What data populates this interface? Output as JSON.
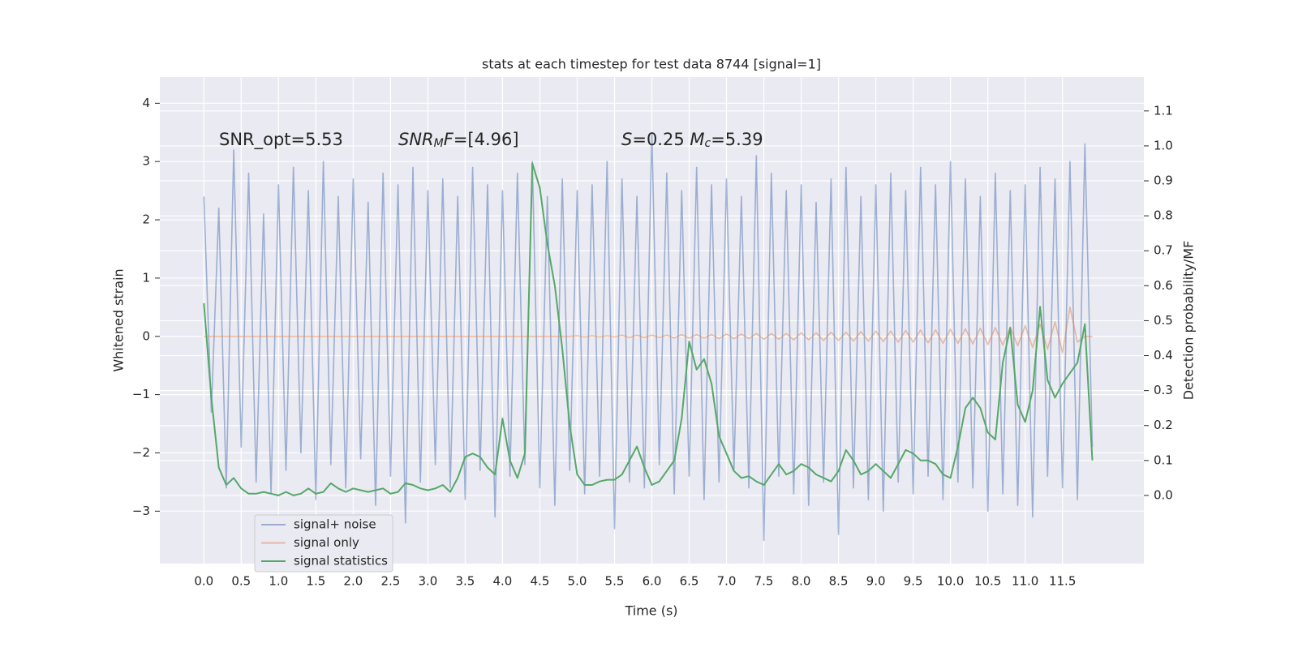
{
  "chart_data": {
    "type": "line",
    "title": "stats at each timestep for test data 8744 [signal=1]",
    "x_label": "Time (s)",
    "y_label": "Whitened strain",
    "y2_label": "Detection probability/MF",
    "annotations": [
      [
        {
          "text": "SNR_opt=5.53"
        }
      ],
      [
        {
          "text": "SNR",
          "italic": true
        },
        {
          "text": "M",
          "sub": true
        },
        {
          "text": "F",
          "italic": true
        },
        {
          "text": "=[4.96]"
        }
      ],
      [
        {
          "text": "S",
          "italic": true
        },
        {
          "text": "=0.25   "
        },
        {
          "text": "M",
          "italic": true
        },
        {
          "text": "c",
          "sub": true
        },
        {
          "text": "=5.39"
        }
      ]
    ],
    "x": [
      0,
      0.1,
      0.2,
      0.3,
      0.4,
      0.5,
      0.6,
      0.7,
      0.8,
      0.9,
      1,
      1.1,
      1.2,
      1.3,
      1.4,
      1.5,
      1.6,
      1.7,
      1.8,
      1.9,
      2,
      2.1,
      2.2,
      2.3,
      2.4,
      2.5,
      2.6,
      2.7,
      2.8,
      2.9,
      3,
      3.1,
      3.2,
      3.3,
      3.4,
      3.5,
      3.6,
      3.7,
      3.8,
      3.9,
      4,
      4.1,
      4.2,
      4.3,
      4.4,
      4.5,
      4.6,
      4.7,
      4.8,
      4.9,
      5,
      5.1,
      5.2,
      5.3,
      5.4,
      5.5,
      5.6,
      5.7,
      5.8,
      5.9,
      6,
      6.1,
      6.2,
      6.3,
      6.4,
      6.5,
      6.6,
      6.7,
      6.8,
      6.9,
      7,
      7.1,
      7.2,
      7.3,
      7.4,
      7.5,
      7.6,
      7.7,
      7.8,
      7.9,
      8,
      8.1,
      8.2,
      8.3,
      8.4,
      8.5,
      8.6,
      8.7,
      8.8,
      8.9,
      9,
      9.1,
      9.2,
      9.3,
      9.4,
      9.5,
      9.6,
      9.7,
      9.8,
      9.9,
      10,
      10.1,
      10.2,
      10.3,
      10.4,
      10.5,
      10.6,
      10.7,
      10.8,
      10.9,
      11,
      11.1,
      11.2,
      11.3,
      11.4,
      11.5,
      11.6,
      11.7,
      11.8,
      11.9
    ],
    "series": [
      {
        "name": "signal+ noise",
        "color": "#4c72b0",
        "opacity": 0.5,
        "values": [
          2.4,
          -1.3,
          2.2,
          -2.6,
          3.2,
          -1.9,
          2.8,
          -2.5,
          2.1,
          -2.7,
          2.6,
          -2.3,
          2.9,
          -2.0,
          2.5,
          -2.8,
          3.0,
          -2.2,
          2.4,
          -2.6,
          2.7,
          -2.1,
          2.3,
          -2.9,
          2.8,
          -2.4,
          2.6,
          -3.2,
          2.9,
          -2.5,
          2.5,
          -2.2,
          2.7,
          -2.6,
          2.4,
          -2.8,
          2.9,
          -2.3,
          2.6,
          -3.1,
          2.5,
          -2.4,
          2.8,
          -2.2,
          3.0,
          -2.6,
          2.4,
          -2.9,
          2.7,
          -2.3,
          2.5,
          -2.7,
          2.6,
          -2.4,
          3.0,
          -3.3,
          2.7,
          -2.5,
          2.4,
          -2.6,
          3.5,
          -2.2,
          2.8,
          -2.7,
          2.5,
          -2.4,
          2.9,
          -2.8,
          2.6,
          -2.5,
          2.7,
          -2.3,
          2.4,
          -2.6,
          3.1,
          -3.5,
          2.8,
          -2.4,
          2.5,
          -2.7,
          2.6,
          -2.9,
          2.3,
          -2.5,
          2.7,
          -3.4,
          2.9,
          -2.6,
          2.4,
          -2.8,
          2.6,
          -3.0,
          2.8,
          -2.5,
          2.5,
          -2.7,
          2.9,
          -2.4,
          2.6,
          -2.8,
          3.0,
          -2.5,
          2.7,
          -2.6,
          2.4,
          -3.0,
          2.8,
          -2.7,
          2.5,
          -2.9,
          2.6,
          -3.1,
          2.9,
          -2.4,
          2.7,
          -2.6,
          3.0,
          -2.8,
          3.3,
          -1.9
        ]
      },
      {
        "name": "signal only",
        "color": "#dd8452",
        "opacity": 0.5,
        "values": [
          0,
          0,
          0,
          0,
          0,
          0,
          0,
          0,
          0,
          0,
          0,
          0,
          0,
          0,
          0,
          0,
          0,
          0,
          0,
          0,
          0,
          0,
          0,
          0,
          0,
          0,
          0,
          0,
          0,
          0,
          0,
          0,
          0,
          0,
          0,
          0,
          0,
          0,
          0,
          0,
          0,
          0,
          0,
          0,
          0,
          0,
          0,
          0,
          0,
          0,
          0.01,
          -0.01,
          0.01,
          -0.01,
          0.01,
          -0.01,
          0.02,
          -0.02,
          0.02,
          -0.02,
          0.02,
          -0.02,
          0.02,
          -0.03,
          0.03,
          -0.03,
          0.03,
          -0.03,
          0.03,
          -0.04,
          0.04,
          -0.04,
          0.04,
          -0.04,
          0.05,
          -0.05,
          0.05,
          -0.05,
          0.05,
          -0.06,
          0.06,
          -0.06,
          0.06,
          -0.07,
          0.07,
          -0.07,
          0.07,
          -0.08,
          0.08,
          -0.08,
          0.09,
          -0.09,
          0.09,
          -0.1,
          0.1,
          -0.1,
          0.11,
          -0.11,
          0.11,
          -0.12,
          0.12,
          -0.12,
          0.13,
          -0.13,
          0.14,
          -0.14,
          0.15,
          -0.15,
          0.16,
          -0.16,
          0.18,
          -0.19,
          0.21,
          -0.22,
          0.25,
          -0.28,
          0.5,
          -0.1,
          0,
          0
        ]
      },
      {
        "name": "signal statistics",
        "color": "#55a868",
        "opacity": 1,
        "axis": "y2",
        "values": [
          0.55,
          0.28,
          0.08,
          0.03,
          0.05,
          0.02,
          0.005,
          0.005,
          0.01,
          0.005,
          0.0,
          0.01,
          0.0,
          0.005,
          0.02,
          0.005,
          0.01,
          0.035,
          0.02,
          0.01,
          0.02,
          0.015,
          0.01,
          0.015,
          0.02,
          0.005,
          0.01,
          0.035,
          0.03,
          0.02,
          0.015,
          0.02,
          0.03,
          0.01,
          0.05,
          0.11,
          0.12,
          0.11,
          0.08,
          0.06,
          0.22,
          0.1,
          0.05,
          0.12,
          0.95,
          0.88,
          0.72,
          0.6,
          0.42,
          0.2,
          0.06,
          0.03,
          0.03,
          0.04,
          0.045,
          0.045,
          0.06,
          0.1,
          0.14,
          0.08,
          0.03,
          0.04,
          0.07,
          0.1,
          0.22,
          0.44,
          0.36,
          0.39,
          0.32,
          0.17,
          0.12,
          0.07,
          0.05,
          0.055,
          0.04,
          0.03,
          0.06,
          0.09,
          0.06,
          0.07,
          0.09,
          0.08,
          0.06,
          0.05,
          0.04,
          0.07,
          0.13,
          0.1,
          0.06,
          0.07,
          0.09,
          0.07,
          0.05,
          0.09,
          0.13,
          0.12,
          0.1,
          0.1,
          0.09,
          0.06,
          0.05,
          0.14,
          0.25,
          0.28,
          0.25,
          0.18,
          0.16,
          0.38,
          0.48,
          0.26,
          0.21,
          0.3,
          0.54,
          0.33,
          0.28,
          0.32,
          0.35,
          0.38,
          0.49,
          0.1
        ]
      }
    ],
    "xlim": [
      -0.59,
      12.59
    ],
    "xticks": [
      {
        "value": 0,
        "label": "0.0"
      },
      0.5,
      {
        "value": 1,
        "label": "1.0"
      },
      1.5,
      {
        "value": 2,
        "label": "2.0"
      },
      2.5,
      {
        "value": 3,
        "label": "3.0"
      },
      3.5,
      {
        "value": 4,
        "label": "4.0"
      },
      4.5,
      {
        "value": 5,
        "label": "5.0"
      },
      5.5,
      {
        "value": 6,
        "label": "6.0"
      },
      6.5,
      {
        "value": 7,
        "label": "7.0"
      },
      7.5,
      {
        "value": 8,
        "label": "8.0"
      },
      8.5,
      {
        "value": 9,
        "label": "9.0"
      },
      9.5,
      {
        "value": 10,
        "label": "10.0"
      },
      10.5,
      {
        "value": 11,
        "label": "11.0"
      },
      11.5
    ],
    "ylim": [
      -3.9,
      4.45
    ],
    "yticks": [
      {
        "value": -3,
        "label": "−3"
      },
      {
        "value": -2,
        "label": "−2"
      },
      {
        "value": -1,
        "label": "−1"
      },
      0,
      1,
      2,
      3,
      4
    ],
    "y2lim": [
      -0.195,
      1.197
    ],
    "y2ticks": [
      {
        "value": 0,
        "label": "0.0"
      },
      0.1,
      0.2,
      0.3,
      0.4,
      0.5,
      0.6,
      0.7,
      0.8,
      0.9,
      {
        "value": 1,
        "label": "1.0"
      },
      1.1
    ],
    "grid": true,
    "legend": "lower left"
  }
}
